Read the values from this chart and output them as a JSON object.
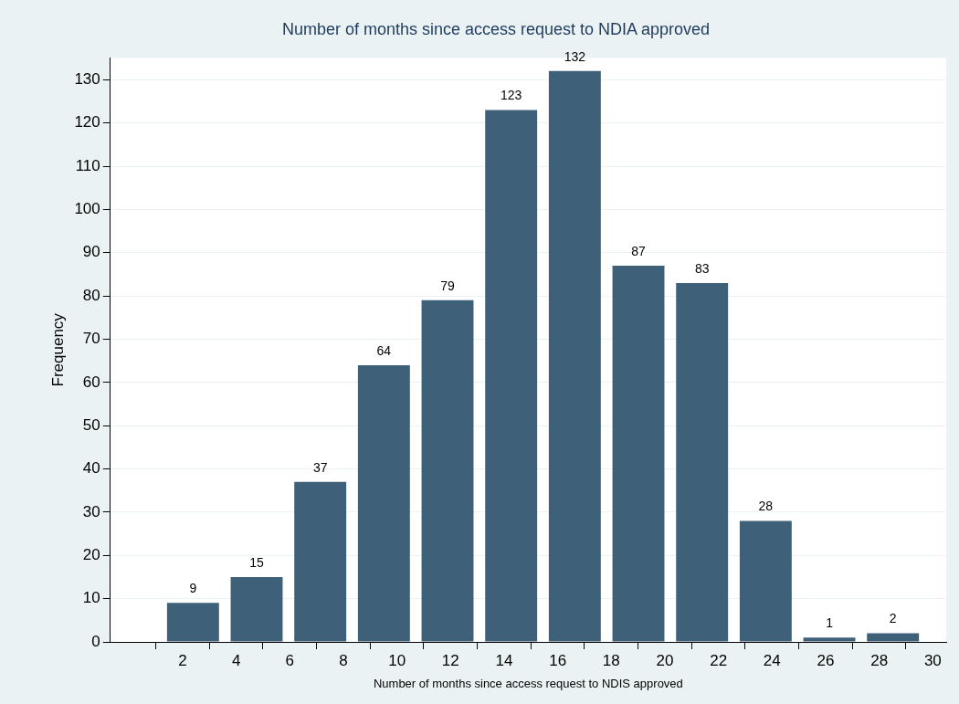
{
  "chart_data": {
    "type": "histogram",
    "title": "Number of months since access request to NDIA approved",
    "xlabel": "Number of months since access request to NDIS approved",
    "ylabel": "Frequency",
    "bins": [
      1.2,
      3.575,
      5.95,
      8.325,
      10.7,
      13.075,
      15.45,
      17.825,
      20.2,
      22.575,
      24.95,
      27.325,
      29.7
    ],
    "values": [
      9,
      15,
      37,
      64,
      79,
      123,
      132,
      87,
      83,
      28,
      1,
      2
    ],
    "color": "#3e6079",
    "data_labels": true,
    "grid": "y",
    "legend": false,
    "xlim": [
      -0.7,
      30.5
    ],
    "xticks": [
      2,
      4,
      6,
      8,
      10,
      12,
      14,
      16,
      18,
      20,
      22,
      24,
      26,
      28,
      30
    ],
    "ylim": [
      0,
      135
    ],
    "yticks": [
      0,
      10,
      20,
      30,
      40,
      50,
      60,
      70,
      80,
      90,
      100,
      110,
      120,
      130
    ]
  }
}
